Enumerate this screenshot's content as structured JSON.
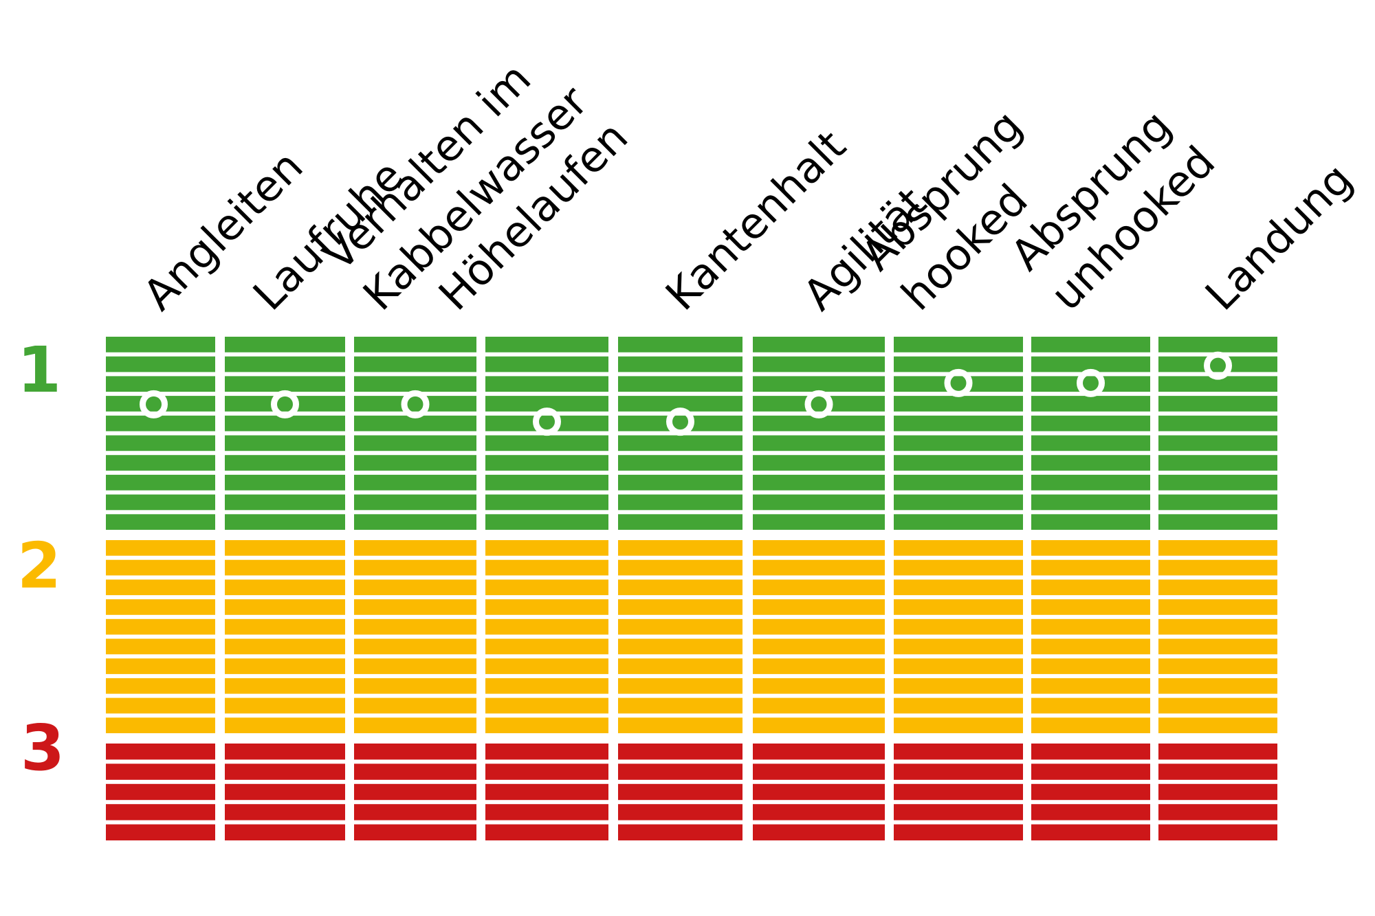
{
  "chart_data": {
    "type": "heatmap",
    "title": "",
    "xlabel": "",
    "ylabel": "",
    "categories": [
      [
        "Angleiten"
      ],
      [
        "Laufruhe"
      ],
      [
        "Verhalten im",
        "Kabbelwasser"
      ],
      [
        "Höhelaufen"
      ],
      [
        "Kantenhalt"
      ],
      [
        "Agilität"
      ],
      [
        "Absprung",
        "hooked"
      ],
      [
        "Absprung",
        "unhooked"
      ],
      [
        "Landung"
      ]
    ],
    "zones": [
      {
        "label": "1",
        "color": "#43a535",
        "stripes": 10
      },
      {
        "label": "2",
        "color": "#fbba00",
        "stripes": 10
      },
      {
        "label": "3",
        "color": "#cd1719",
        "stripes": 5
      }
    ],
    "scale": [
      1,
      3
    ],
    "values": [
      1.35,
      1.35,
      1.35,
      1.44,
      1.44,
      1.35,
      1.24,
      1.24,
      1.15
    ],
    "marker_color": "#ffffff",
    "legend": "none",
    "grid": false
  }
}
